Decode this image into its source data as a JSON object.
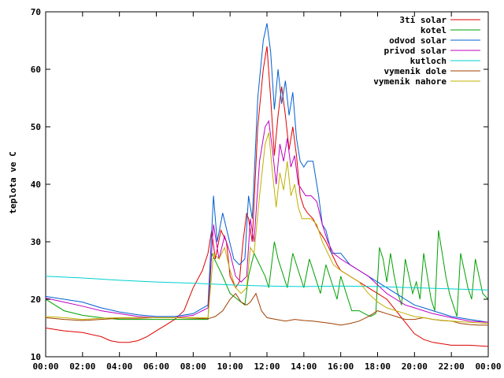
{
  "chart_data": {
    "type": "line",
    "title": "",
    "xlabel": "",
    "ylabel": "teplota ve C",
    "xlim": [
      0,
      24
    ],
    "ylim": [
      10,
      70
    ],
    "x_ticks": [
      "00:00",
      "02:00",
      "04:00",
      "06:00",
      "08:00",
      "10:00",
      "12:00",
      "14:00",
      "16:00",
      "18:00",
      "20:00",
      "22:00",
      "00:00"
    ],
    "y_ticks": [
      "10",
      "20",
      "30",
      "40",
      "50",
      "60",
      "70"
    ],
    "grid": false,
    "legend_position": "top-right",
    "series": [
      {
        "name": "3ti solar",
        "color": "#e00000",
        "x": [
          0,
          1,
          2,
          3,
          3.5,
          4,
          4.5,
          5,
          5.5,
          6,
          6.5,
          7,
          7.5,
          8,
          8.5,
          8.8,
          9,
          9.2,
          9.5,
          9.8,
          10,
          10.3,
          10.5,
          10.7,
          10.9,
          11,
          11.2,
          11.5,
          11.8,
          12,
          12.2,
          12.4,
          12.6,
          12.8,
          13,
          13.2,
          13.4,
          13.6,
          13.8,
          14,
          14.2,
          14.5,
          14.8,
          15,
          15.2,
          15.5,
          15.8,
          16,
          16.5,
          17,
          17.5,
          18,
          18.5,
          19,
          19.5,
          20,
          20.5,
          21,
          22,
          23,
          24
        ],
        "y": [
          15,
          14.5,
          14.2,
          13.5,
          12.8,
          12.5,
          12.5,
          12.8,
          13.5,
          14.5,
          15.5,
          16.5,
          18,
          22,
          25,
          28,
          32,
          27,
          32,
          30,
          24,
          22,
          23,
          30,
          35,
          34,
          30,
          50,
          60,
          64,
          55,
          45,
          52,
          57,
          52,
          46,
          50,
          45,
          38,
          36,
          35,
          34,
          32,
          31,
          30,
          28,
          26,
          25,
          24,
          23,
          22,
          21,
          20,
          18,
          16,
          14,
          13,
          12.5,
          12,
          12,
          11.8
        ]
      },
      {
        "name": "kotel",
        "color": "#00a000",
        "x": [
          0,
          0.5,
          1,
          2,
          3,
          4,
          5,
          6,
          7,
          8,
          8.8,
          9,
          9.3,
          9.6,
          10,
          10.4,
          10.8,
          11,
          11.3,
          11.6,
          11.9,
          12.1,
          12.4,
          12.6,
          12.9,
          13.1,
          13.4,
          13.7,
          14,
          14.3,
          14.6,
          14.9,
          15.2,
          15.5,
          15.8,
          16,
          16.3,
          16.6,
          17,
          17.3,
          17.6,
          17.9,
          18.1,
          18.3,
          18.5,
          18.7,
          18.9,
          19.1,
          19.3,
          19.5,
          19.7,
          19.9,
          20.1,
          20.3,
          20.5,
          20.7,
          20.9,
          21.1,
          21.3,
          21.5,
          21.7,
          21.9,
          22.1,
          22.3,
          22.5,
          22.7,
          22.9,
          23.1,
          23.3,
          23.5,
          23.7,
          24
        ],
        "y": [
          20,
          19,
          18,
          17.2,
          16.8,
          16.5,
          16.5,
          16.5,
          16.5,
          16.5,
          16.5,
          28,
          26,
          24,
          21,
          20,
          19,
          24,
          28,
          26,
          24,
          22,
          30,
          27,
          24,
          22,
          28,
          25,
          22,
          27,
          24,
          21,
          26,
          23,
          20,
          24,
          21,
          18,
          18,
          17.5,
          17,
          17.5,
          29,
          27,
          23,
          28,
          24,
          21,
          19,
          27,
          24,
          21,
          23,
          20,
          28,
          24,
          20,
          18,
          32,
          28,
          24,
          21,
          19,
          17,
          28,
          25,
          22,
          20,
          27,
          24,
          21,
          20
        ]
      },
      {
        "name": "odvod solar",
        "color": "#0060d0",
        "x": [
          0,
          1,
          2,
          3,
          4,
          5,
          6,
          7,
          8,
          8.8,
          9.1,
          9.3,
          9.6,
          9.9,
          10.2,
          10.5,
          10.8,
          11,
          11.2,
          11.5,
          11.8,
          12,
          12.2,
          12.4,
          12.6,
          12.8,
          13,
          13.2,
          13.4,
          13.6,
          13.8,
          14,
          14.2,
          14.5,
          14.8,
          15,
          15.2,
          15.5,
          15.8,
          16,
          16.5,
          17,
          17.5,
          18,
          18.5,
          19,
          19.5,
          20,
          20.5,
          21,
          22,
          23,
          24
        ],
        "y": [
          20.5,
          20,
          19.5,
          18.5,
          17.8,
          17.3,
          17,
          17,
          17.5,
          19,
          38,
          30,
          35,
          31,
          27,
          26,
          27,
          38,
          34,
          55,
          65,
          68,
          63,
          53,
          60,
          54,
          58,
          52,
          56,
          48,
          44,
          43,
          44,
          44,
          38,
          33,
          32,
          28,
          28,
          28,
          26,
          25,
          24,
          23,
          22,
          21,
          20,
          19,
          18.5,
          18,
          17,
          16.5,
          16
        ]
      },
      {
        "name": "privod solar",
        "color": "#c000c0",
        "x": [
          0,
          1,
          2,
          3,
          4,
          5,
          6,
          7,
          8,
          8.8,
          9.1,
          9.4,
          9.7,
          10,
          10.3,
          10.6,
          10.9,
          11.1,
          11.3,
          11.6,
          11.9,
          12.1,
          12.3,
          12.5,
          12.7,
          12.9,
          13.1,
          13.3,
          13.5,
          13.7,
          13.9,
          14.1,
          14.4,
          14.7,
          15,
          15.3,
          15.6,
          16,
          16.5,
          17,
          17.5,
          18,
          18.5,
          19,
          19.5,
          20,
          20.5,
          21,
          22,
          23,
          24
        ],
        "y": [
          20.2,
          19.5,
          18.8,
          18,
          17.5,
          17,
          16.8,
          16.8,
          17.2,
          18.5,
          33,
          27,
          31,
          28,
          24,
          23,
          24,
          34,
          30,
          44,
          50,
          51,
          46,
          40,
          47,
          44,
          48,
          43,
          45,
          40,
          39,
          38,
          38,
          37,
          33,
          30,
          28,
          27,
          26,
          25,
          24,
          22.5,
          21,
          20,
          19,
          18.5,
          18,
          17.5,
          16.8,
          16.2,
          16
        ]
      },
      {
        "name": "kutloch",
        "color": "#00d0d0",
        "x": [
          0,
          2,
          4,
          6,
          8,
          10,
          12,
          14,
          16,
          18,
          20,
          22,
          24
        ],
        "y": [
          24,
          23.7,
          23.3,
          23,
          22.8,
          22.5,
          22.3,
          22.2,
          22.3,
          22.2,
          22,
          21.8,
          21.6
        ]
      },
      {
        "name": "vymenik dole",
        "color": "#a04000",
        "x": [
          0,
          1,
          2,
          3,
          4,
          5,
          6,
          7,
          8,
          8.8,
          9.2,
          9.6,
          10,
          10.3,
          10.6,
          10.9,
          11.1,
          11.4,
          11.7,
          12,
          12.5,
          13,
          13.5,
          14,
          14.5,
          15,
          15.5,
          16,
          16.5,
          17,
          17.5,
          18,
          18.5,
          19,
          19.5,
          20,
          20.5,
          21,
          21.5,
          22,
          22.5,
          23,
          23.5,
          24
        ],
        "y": [
          16.8,
          16.5,
          16.3,
          16.5,
          16.7,
          16.7,
          16.8,
          16.8,
          16.7,
          16.6,
          17,
          18,
          20,
          21,
          19.5,
          19,
          19.5,
          21,
          18,
          16.8,
          16.5,
          16.2,
          16.5,
          16.3,
          16.2,
          16,
          15.8,
          15.5,
          15.8,
          16.2,
          17,
          18,
          17.5,
          17,
          16.5,
          16.5,
          16.8,
          16.5,
          16.3,
          16.2,
          15.8,
          15.6,
          15.5,
          15.5
        ]
      },
      {
        "name": "vymenik nahore",
        "color": "#c0b000",
        "x": [
          0,
          1,
          2,
          3,
          4,
          5,
          6,
          7,
          8,
          8.8,
          9.1,
          9.4,
          9.7,
          10,
          10.3,
          10.6,
          10.9,
          11.1,
          11.3,
          11.6,
          11.9,
          12.1,
          12.3,
          12.5,
          12.7,
          12.9,
          13.1,
          13.3,
          13.5,
          13.7,
          13.9,
          14.1,
          14.4,
          14.7,
          15,
          15.3,
          15.6,
          16,
          16.5,
          17,
          17.5,
          18,
          18.5,
          19,
          19.5,
          20,
          20.5,
          21,
          22,
          23,
          24
        ],
        "y": [
          17,
          16.8,
          16.5,
          16.7,
          16.8,
          16.8,
          16.8,
          16.8,
          16.8,
          16.8,
          28,
          27,
          29,
          25,
          22,
          21,
          22,
          29,
          28,
          38,
          47,
          49,
          42,
          36,
          42,
          39,
          44,
          38,
          40,
          36,
          34,
          34,
          34,
          33,
          30,
          28,
          26,
          25,
          24,
          23,
          21,
          19.5,
          18.5,
          18,
          17.5,
          17,
          16.8,
          16.5,
          16.2,
          16,
          15.8
        ]
      }
    ]
  }
}
